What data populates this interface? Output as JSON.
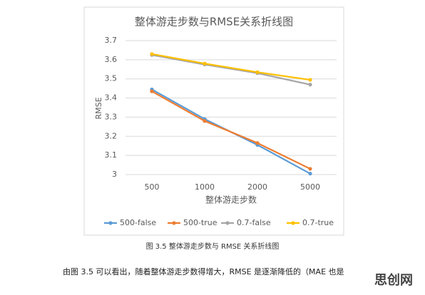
{
  "chart_data": {
    "type": "line",
    "title": "整体游走步数与RMSE关系折线图",
    "x_label": "整体游走步数",
    "y_label": "RMSE",
    "categories": [
      "500",
      "1000",
      "2000",
      "5000"
    ],
    "series": [
      {
        "name": "500-false",
        "color": "#5b9bd5",
        "values": [
          3.445,
          3.29,
          3.155,
          3.005
        ]
      },
      {
        "name": "500-true",
        "color": "#ed7d31",
        "values": [
          3.435,
          3.28,
          3.165,
          3.03
        ]
      },
      {
        "name": "0.7-false",
        "color": "#a5a5a5",
        "values": [
          3.625,
          3.575,
          3.53,
          3.47
        ]
      },
      {
        "name": "0.7-true",
        "color": "#ffc000",
        "values": [
          3.63,
          3.58,
          3.535,
          3.495
        ]
      }
    ],
    "ylim": [
      3,
      3.7
    ],
    "yticks": [
      3,
      3.1,
      3.2,
      3.3,
      3.4,
      3.5,
      3.6,
      3.7
    ],
    "grid": true,
    "legend": "bottom"
  },
  "caption": "图 3.5  整体游走步数与 RMSE 关系折线图",
  "body_text": "由图 3.5 可以看出，随着整体游走步数得增大，RMSE 是逐渐降低的（MAE 也是",
  "watermark": "思创网"
}
